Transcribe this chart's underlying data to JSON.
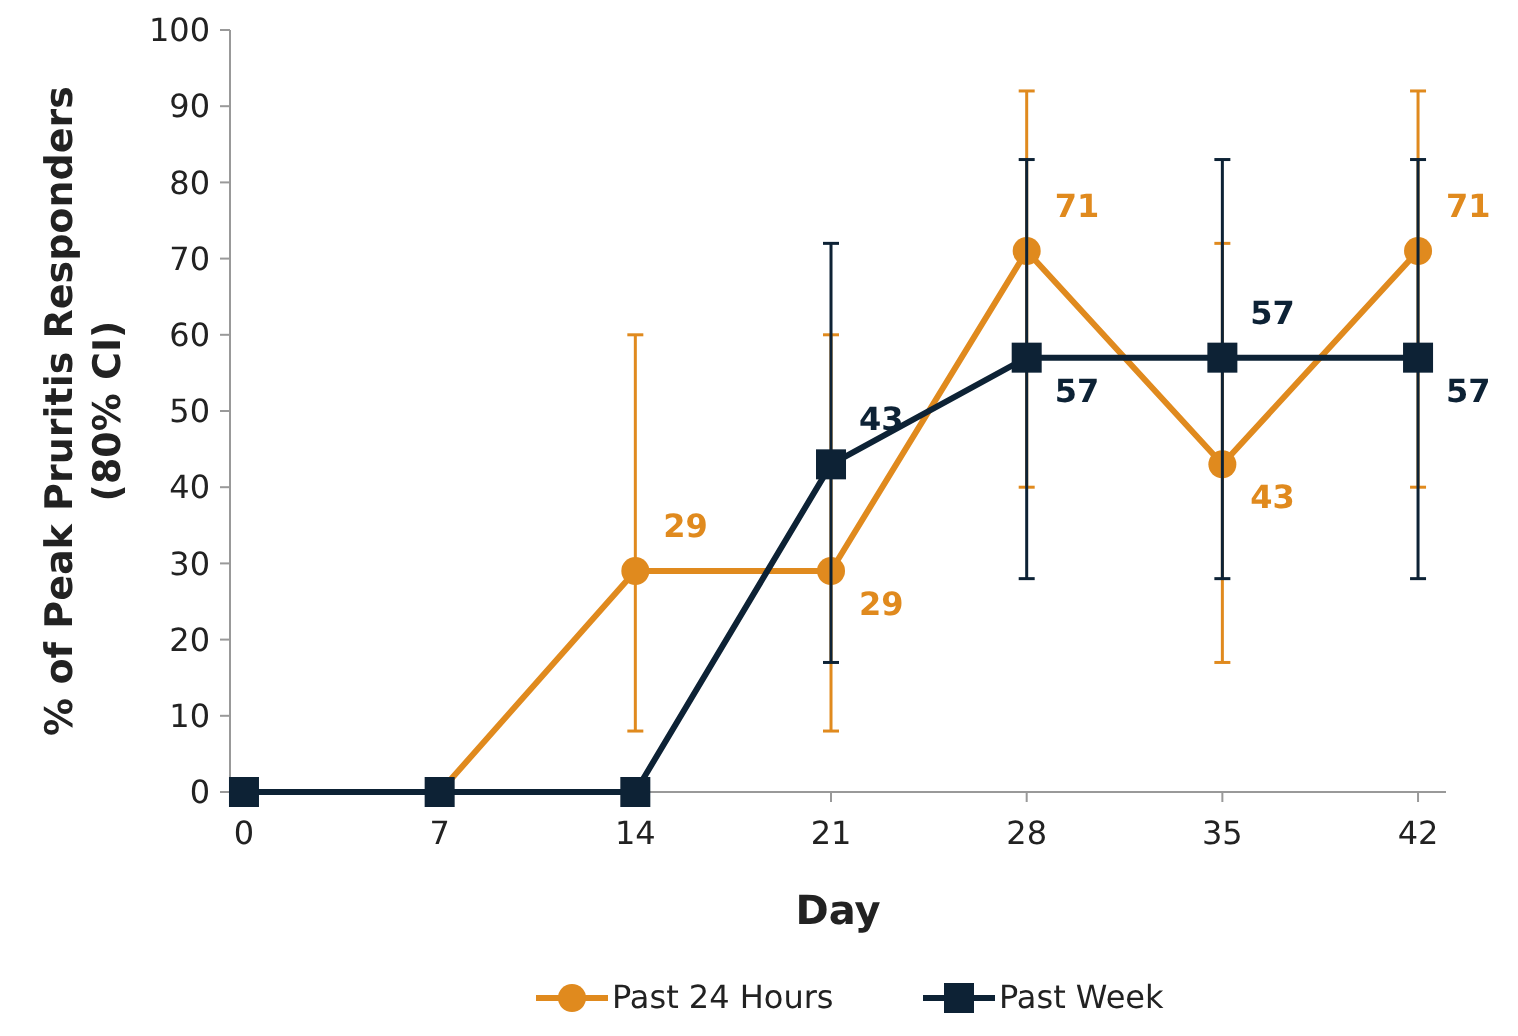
{
  "chart_data": {
    "type": "line",
    "xlabel": "Day",
    "ylabel": "% of Peak Pruritis Responders (80% CI)",
    "x": [
      0,
      7,
      14,
      21,
      28,
      35,
      42
    ],
    "xlim": [
      -0.5,
      43
    ],
    "xticks": [
      0,
      7,
      14,
      21,
      28,
      35,
      42
    ],
    "ylim": [
      0,
      100
    ],
    "yticks": [
      0,
      10,
      20,
      30,
      40,
      50,
      60,
      70,
      80,
      90,
      100
    ],
    "grid": false,
    "legend": "bottom",
    "series": [
      {
        "name": "Past 24 Hours",
        "color": "#e08a1e",
        "marker": "circle",
        "values": [
          0,
          0,
          29,
          29,
          71,
          43,
          71
        ],
        "errors": [
          null,
          null,
          [
            8,
            60
          ],
          [
            8,
            60
          ],
          [
            40,
            92
          ],
          [
            17,
            72
          ],
          [
            40,
            92
          ]
        ],
        "value_labels": [
          null,
          null,
          "29",
          "29",
          "71",
          "43",
          "71"
        ]
      },
      {
        "name": "Past Week",
        "color": "#0d2235",
        "marker": "square",
        "values": [
          0,
          0,
          0,
          43,
          57,
          57,
          57
        ],
        "errors": [
          null,
          null,
          null,
          [
            17,
            72
          ],
          [
            28,
            83
          ],
          [
            28,
            83
          ],
          [
            28,
            83
          ]
        ],
        "value_labels": [
          null,
          null,
          null,
          "43",
          "57",
          "57",
          "57"
        ]
      }
    ]
  }
}
